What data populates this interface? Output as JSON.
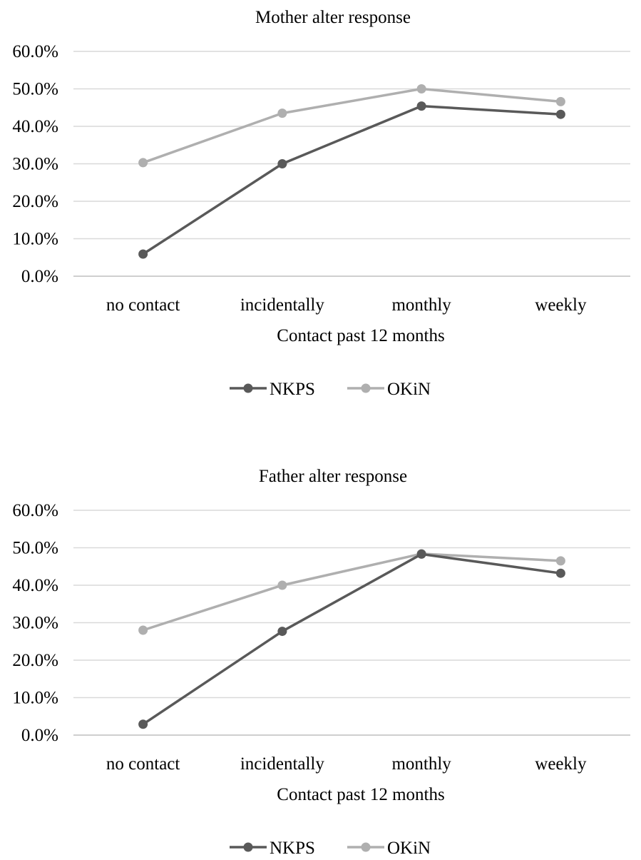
{
  "chart_data": [
    {
      "type": "line",
      "title": "Mother alter response",
      "xlabel": "Contact past 12 months",
      "ylabel": "",
      "categories": [
        "no contact",
        "incidentally",
        "monthly",
        "weekly"
      ],
      "ylim": [
        0,
        60
      ],
      "yticks": [
        "60.0%",
        "50.0%",
        "40.0%",
        "30.0%",
        "20.0%",
        "10.0%",
        "0.0%"
      ],
      "grid": true,
      "legend_position": "bottom",
      "series": [
        {
          "name": "NKPS",
          "color": "#595959",
          "values": [
            5.9,
            30.0,
            45.4,
            43.2
          ]
        },
        {
          "name": "OKiN",
          "color": "#afafaf",
          "values": [
            30.3,
            43.5,
            50.0,
            46.6
          ]
        }
      ]
    },
    {
      "type": "line",
      "title": "Father alter response",
      "xlabel": "Contact past 12 months",
      "ylabel": "",
      "categories": [
        "no contact",
        "incidentally",
        "monthly",
        "weekly"
      ],
      "ylim": [
        0,
        60
      ],
      "yticks": [
        "60.0%",
        "50.0%",
        "40.0%",
        "30.0%",
        "20.0%",
        "10.0%",
        "0.0%"
      ],
      "grid": true,
      "legend_position": "bottom",
      "series": [
        {
          "name": "NKPS",
          "color": "#595959",
          "values": [
            2.9,
            27.7,
            48.3,
            43.2
          ]
        },
        {
          "name": "OKiN",
          "color": "#afafaf",
          "values": [
            28.0,
            40.0,
            48.4,
            46.5
          ]
        }
      ]
    }
  ]
}
